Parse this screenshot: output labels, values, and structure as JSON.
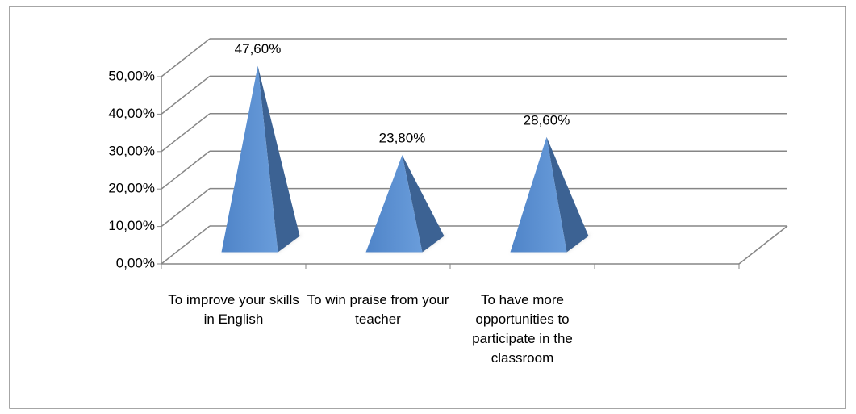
{
  "chart_data": {
    "type": "pyramid3d",
    "categories": [
      "To improve your skills in English",
      "To win praise from your teacher",
      "To have more opportunities to participate in the classroom",
      null
    ],
    "values": [
      47.6,
      23.8,
      28.6,
      null
    ],
    "value_labels": [
      "47,60%",
      "23,80%",
      "28,60%",
      null
    ],
    "color": "#5b8fd2",
    "ylim": [
      0,
      50
    ],
    "yticks": [
      {
        "value": 0,
        "label": "0,00%"
      },
      {
        "value": 10,
        "label": "10,00%"
      },
      {
        "value": 20,
        "label": "20,00%"
      },
      {
        "value": 30,
        "label": "30,00%"
      },
      {
        "value": 40,
        "label": "40,00%"
      },
      {
        "value": 50,
        "label": "50,00%"
      }
    ],
    "grid": true
  }
}
